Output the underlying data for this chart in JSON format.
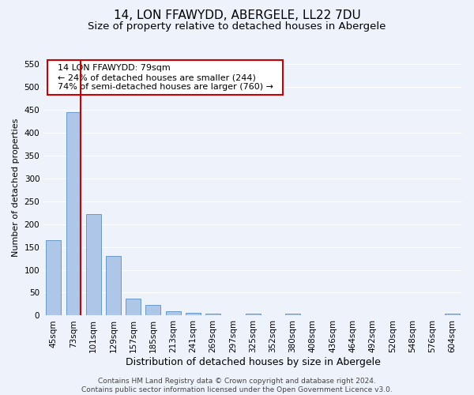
{
  "title": "14, LON FFAWYDD, ABERGELE, LL22 7DU",
  "subtitle": "Size of property relative to detached houses in Abergele",
  "xlabel": "Distribution of detached houses by size in Abergele",
  "ylabel": "Number of detached properties",
  "footer_line1": "Contains HM Land Registry data © Crown copyright and database right 2024.",
  "footer_line2": "Contains public sector information licensed under the Open Government Licence v3.0.",
  "bar_labels": [
    "45sqm",
    "73sqm",
    "101sqm",
    "129sqm",
    "157sqm",
    "185sqm",
    "213sqm",
    "241sqm",
    "269sqm",
    "297sqm",
    "325sqm",
    "352sqm",
    "380sqm",
    "408sqm",
    "436sqm",
    "464sqm",
    "492sqm",
    "520sqm",
    "548sqm",
    "576sqm",
    "604sqm"
  ],
  "bar_values": [
    165,
    444,
    222,
    130,
    37,
    24,
    10,
    6,
    4,
    0,
    5,
    0,
    5,
    0,
    0,
    0,
    0,
    0,
    0,
    0,
    5
  ],
  "bar_color": "#aec6e8",
  "bar_edge_color": "#5a8fc2",
  "ylim": [
    0,
    560
  ],
  "yticks": [
    0,
    50,
    100,
    150,
    200,
    250,
    300,
    350,
    400,
    450,
    500,
    550
  ],
  "property_bar_index": 1,
  "annotation_title": "14 LON FFAWYDD: 79sqm",
  "annotation_line1": "← 24% of detached houses are smaller (244)",
  "annotation_line2": "74% of semi-detached houses are larger (760) →",
  "annotation_box_color": "#ffffff",
  "annotation_border_color": "#cc0000",
  "property_line_color": "#cc0000",
  "background_color": "#eef2fb",
  "grid_color": "#ffffff",
  "title_fontsize": 11,
  "subtitle_fontsize": 9.5,
  "xlabel_fontsize": 9,
  "ylabel_fontsize": 8,
  "tick_fontsize": 7.5,
  "annotation_fontsize": 8,
  "footer_fontsize": 6.5
}
